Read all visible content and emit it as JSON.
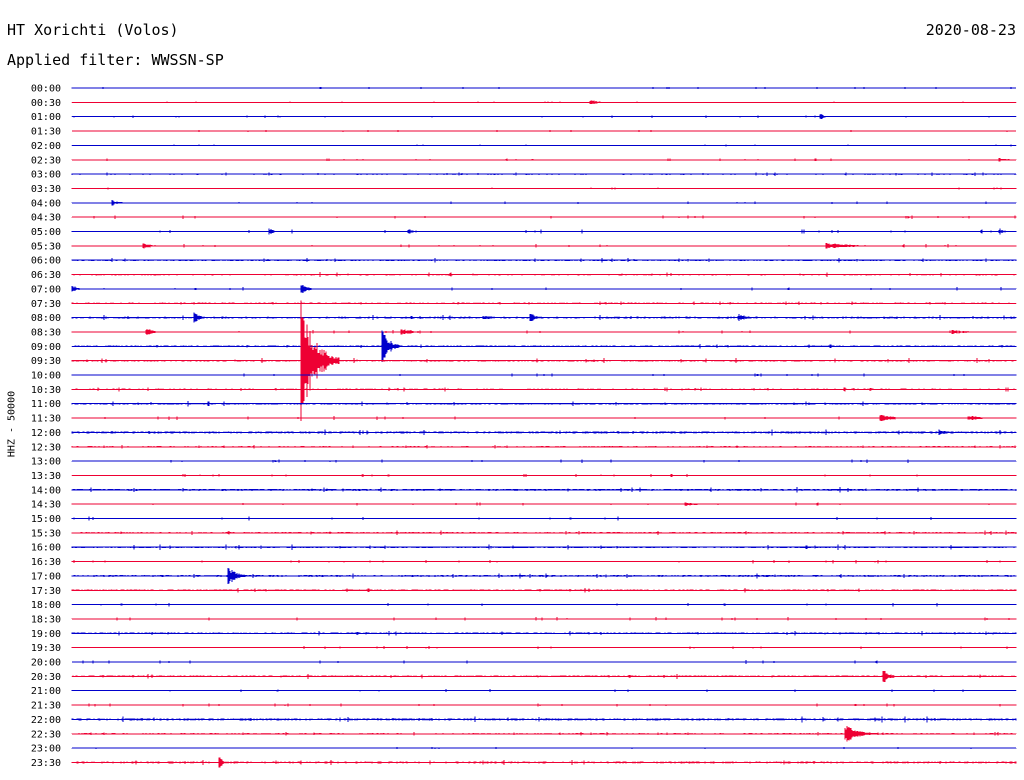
{
  "header": {
    "station": "HT Xorichti (Volos)",
    "date": "2020-08-23",
    "filter": "Applied filter: WWSSN-SP"
  },
  "chart_data": {
    "type": "line",
    "chart_kind": "helicorder",
    "ylabel": "HHZ - 50000",
    "colors": {
      "even_rows": "#0000cc",
      "odd_rows": "#ee0033"
    },
    "rows": [
      "00:00",
      "00:30",
      "01:00",
      "01:30",
      "02:00",
      "02:30",
      "03:00",
      "03:30",
      "04:00",
      "04:30",
      "05:00",
      "05:30",
      "06:00",
      "06:30",
      "07:00",
      "07:30",
      "08:00",
      "08:30",
      "09:00",
      "09:30",
      "10:00",
      "10:30",
      "11:00",
      "11:30",
      "12:00",
      "12:30",
      "13:00",
      "13:30",
      "14:00",
      "14:30",
      "15:00",
      "15:30",
      "16:00",
      "16:30",
      "17:00",
      "17:30",
      "18:00",
      "18:30",
      "19:00",
      "19:30",
      "20:00",
      "20:30",
      "21:00",
      "21:30",
      "22:00",
      "22:30",
      "23:00",
      "23:30"
    ],
    "noise_levels": [
      0.4,
      0.3,
      0.4,
      0.4,
      0.3,
      0.4,
      0.7,
      0.4,
      0.5,
      0.6,
      0.7,
      0.6,
      0.8,
      0.8,
      0.6,
      0.6,
      0.9,
      0.6,
      0.8,
      0.9,
      0.6,
      0.7,
      0.9,
      0.7,
      1.0,
      0.6,
      0.6,
      0.5,
      1.0,
      0.6,
      0.7,
      0.8,
      0.9,
      0.6,
      0.9,
      0.8,
      0.6,
      0.6,
      0.8,
      0.5,
      0.6,
      0.9,
      0.5,
      0.5,
      1.0,
      0.6,
      0.4,
      0.9
    ],
    "minutes_per_row": 30,
    "events": [
      {
        "row": 1,
        "minute": 16.5,
        "amplitude": 3,
        "duration": 0.6
      },
      {
        "row": 2,
        "minute": 23.8,
        "amplitude": 4,
        "duration": 0.3
      },
      {
        "row": 5,
        "minute": 29.5,
        "amplitude": 2,
        "duration": 0.8
      },
      {
        "row": 8,
        "minute": 1.3,
        "amplitude": 3,
        "duration": 0.6
      },
      {
        "row": 10,
        "minute": 6.3,
        "amplitude": 3,
        "duration": 0.4
      },
      {
        "row": 10,
        "minute": 10.7,
        "amplitude": 3,
        "duration": 0.4
      },
      {
        "row": 10,
        "minute": 29.5,
        "amplitude": 3,
        "duration": 0.4
      },
      {
        "row": 11,
        "minute": 2.3,
        "amplitude": 3,
        "duration": 0.8
      },
      {
        "row": 11,
        "minute": 24.0,
        "amplitude": 3,
        "duration": 2.5
      },
      {
        "row": 14,
        "minute": 0.0,
        "amplitude": 4,
        "duration": 0.5
      },
      {
        "row": 14,
        "minute": 7.3,
        "amplitude": 5,
        "duration": 0.6
      },
      {
        "row": 16,
        "minute": 3.9,
        "amplitude": 5,
        "duration": 0.6
      },
      {
        "row": 16,
        "minute": 13.1,
        "amplitude": 3,
        "duration": 0.8
      },
      {
        "row": 16,
        "minute": 14.6,
        "amplitude": 4,
        "duration": 0.6
      },
      {
        "row": 16,
        "minute": 21.2,
        "amplitude": 4,
        "duration": 0.7
      },
      {
        "row": 17,
        "minute": 2.4,
        "amplitude": 4,
        "duration": 0.5
      },
      {
        "row": 17,
        "minute": 10.5,
        "amplitude": 3,
        "duration": 1.2
      },
      {
        "row": 17,
        "minute": 28.0,
        "amplitude": 2,
        "duration": 1.5
      },
      {
        "row": 18,
        "minute": 9.9,
        "amplitude": 17,
        "duration": 0.6
      },
      {
        "row": 19,
        "minute": 7.3,
        "amplitude": 64,
        "duration": 1.2
      },
      {
        "row": 23,
        "minute": 25.7,
        "amplitude": 5,
        "duration": 1.0
      },
      {
        "row": 23,
        "minute": 28.5,
        "amplitude": 3,
        "duration": 1.2
      },
      {
        "row": 24,
        "minute": 27.6,
        "amplitude": 4,
        "duration": 0.5
      },
      {
        "row": 29,
        "minute": 19.5,
        "amplitude": 2,
        "duration": 1.2
      },
      {
        "row": 34,
        "minute": 5.0,
        "amplitude": 9,
        "duration": 0.7
      },
      {
        "row": 41,
        "minute": 25.8,
        "amplitude": 7,
        "duration": 0.6
      },
      {
        "row": 45,
        "minute": 24.6,
        "amplitude": 9,
        "duration": 1.2
      },
      {
        "row": 47,
        "minute": 4.7,
        "amplitude": 8,
        "duration": 0.2
      }
    ]
  }
}
